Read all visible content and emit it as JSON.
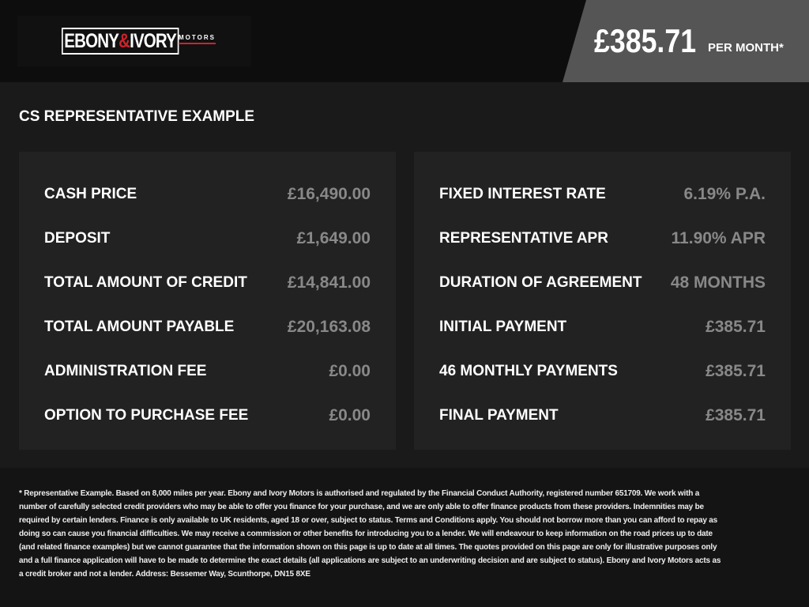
{
  "header": {
    "logo": {
      "main": "EBONY",
      "amp": "&",
      "second": "IVORY",
      "sub": "MOTORS",
      "accent": "#d0222a"
    },
    "price": "£385.71",
    "per_month": "PER MONTH*"
  },
  "title": "CS REPRESENTATIVE EXAMPLE",
  "left_rows": [
    {
      "label": "CASH PRICE",
      "value": "£16,490.00"
    },
    {
      "label": "DEPOSIT",
      "value": "£1,649.00"
    },
    {
      "label": "TOTAL AMOUNT OF CREDIT",
      "value": "£14,841.00"
    },
    {
      "label": "TOTAL AMOUNT PAYABLE",
      "value": "£20,163.08"
    },
    {
      "label": "ADMINISTRATION FEE",
      "value": "£0.00"
    },
    {
      "label": "OPTION TO PURCHASE FEE",
      "value": "£0.00"
    }
  ],
  "right_rows": [
    {
      "label": "FIXED INTEREST RATE",
      "value": "6.19% P.A."
    },
    {
      "label": "REPRESENTATIVE APR",
      "value": "11.90% APR"
    },
    {
      "label": "DURATION OF AGREEMENT",
      "value": "48 MONTHS"
    },
    {
      "label": "INITIAL PAYMENT",
      "value": "£385.71"
    },
    {
      "label": "46 MONTHLY PAYMENTS",
      "value": "£385.71"
    },
    {
      "label": "FINAL PAYMENT",
      "value": "£385.71"
    }
  ],
  "disclaimer": "* Representative Example. Based on 8,000 miles per year. Ebony and Ivory Motors is authorised and regulated by the Financial Conduct Authority, registered number 651709. We work with a number of carefully selected credit providers who may be able to offer you finance for your purchase, and we are only able to offer finance products from these providers. Indemnities may be required by certain lenders. Finance is only available to UK residents, aged 18 or over, subject to status. Terms and Conditions apply. You should not borrow more than you can afford to repay as doing so can cause you financial difficulties. We may receive a commission or other benefits for introducing you to a lender. We will endeavour to keep information on the road prices up to date (and related finance examples) but we cannot guarantee that the information shown on this page is up to date at all times. The quotes provided on this page are only for illustrative purposes only and a full finance application will have to be made to determine the exact details (all applications are subject to an underwriting decision and are subject to status). Ebony and Ivory Motors acts as a credit broker and not a lender. Address: Bessemer Way, Scunthorpe, DN15 8XE"
}
